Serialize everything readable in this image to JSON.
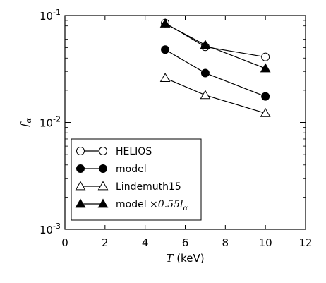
{
  "chart_data": {
    "type": "line",
    "xlabel_var": "T",
    "xlabel_unit": " (keV)",
    "ylabel_var": "f",
    "ylabel_sub": "α",
    "xlim": [
      0,
      12
    ],
    "ylim": [
      0.001,
      0.1
    ],
    "yscale": "log",
    "grid": false,
    "legend_position": "lower-left",
    "x_ticks": [
      0,
      2,
      4,
      6,
      8,
      10,
      12
    ],
    "x_tick_labels": [
      "0",
      "2",
      "4",
      "6",
      "8",
      "10",
      "12"
    ],
    "y_ticks": [
      {
        "value": 0.001,
        "base": "10",
        "exp": "-3"
      },
      {
        "value": 0.01,
        "base": "10",
        "exp": "-2"
      },
      {
        "value": 0.1,
        "base": "10",
        "exp": "-1"
      }
    ],
    "series": [
      {
        "name": "HELIOS",
        "marker": "circle-open",
        "x": [
          5,
          7,
          10
        ],
        "y": [
          0.085,
          0.051,
          0.041
        ]
      },
      {
        "name": "model",
        "marker": "circle-filled",
        "x": [
          5,
          7,
          10
        ],
        "y": [
          0.048,
          0.029,
          0.0175
        ]
      },
      {
        "name": "Lindemuth15",
        "marker": "triangle-open",
        "x": [
          5,
          7,
          10
        ],
        "y": [
          0.026,
          0.018,
          0.0122
        ]
      },
      {
        "name": "model ",
        "name_math": "×0.55l",
        "name_sub": "α",
        "marker": "triangle-filled",
        "x": [
          5,
          7,
          10
        ],
        "y": [
          0.084,
          0.053,
          0.032
        ]
      }
    ]
  }
}
